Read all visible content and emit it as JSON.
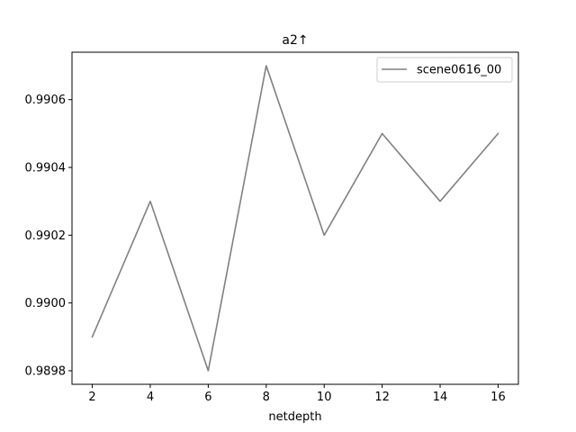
{
  "chart_data": {
    "type": "line",
    "title": "a2↑",
    "xlabel": "netdepth",
    "ylabel": "",
    "x": [
      2,
      4,
      6,
      8,
      10,
      12,
      14,
      16
    ],
    "series": [
      {
        "name": "scene0616_00",
        "color": "#808080",
        "values": [
          0.9899,
          0.9903,
          0.9898,
          0.9907,
          0.9902,
          0.9905,
          0.9903,
          0.9905
        ]
      }
    ],
    "xlim": [
      1.3,
      16.7
    ],
    "ylim": [
      0.98976,
      0.99074
    ],
    "xticks": [
      2,
      4,
      6,
      8,
      10,
      12,
      14,
      16
    ],
    "xtick_labels": [
      "2",
      "4",
      "6",
      "8",
      "10",
      "12",
      "14",
      "16"
    ],
    "yticks": [
      0.9898,
      0.99,
      0.9902,
      0.9904,
      0.9906
    ],
    "ytick_labels": [
      "0.9898",
      "0.9900",
      "0.9902",
      "0.9904",
      "0.9906"
    ],
    "grid": false,
    "legend_position": "upper right"
  }
}
